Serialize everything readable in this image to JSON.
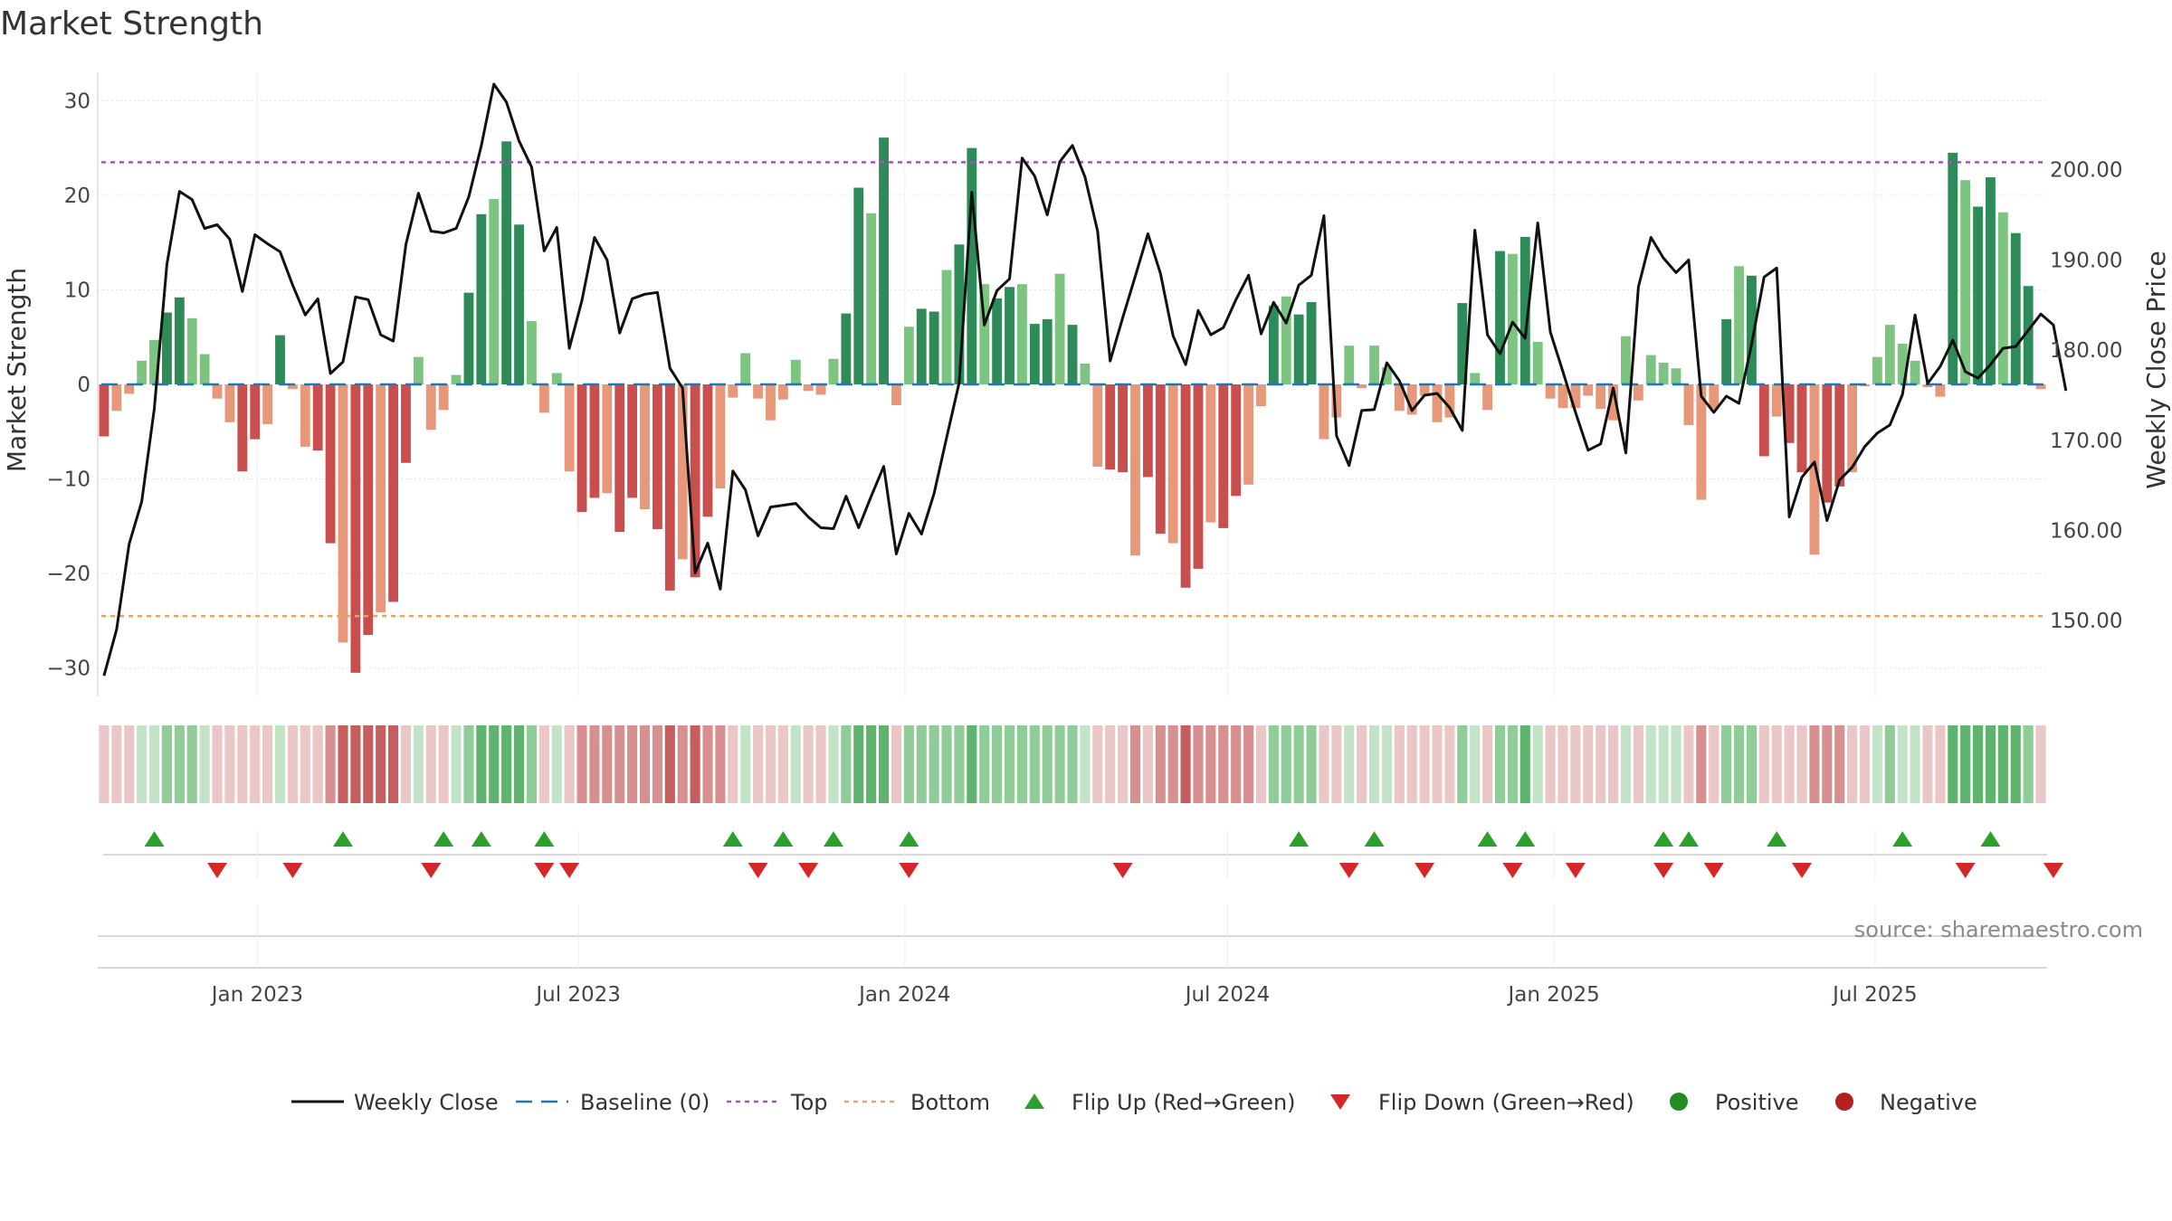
{
  "page": {
    "title": "Market Strength",
    "source": "source: sharemaestro.com"
  },
  "chart_data": {
    "type": "bar",
    "title": "Market Strength",
    "ylabel_left": "Market Strength",
    "ylabel_right": "Weekly Close Price",
    "ylim_left": [
      -33,
      33
    ],
    "ylim_right": [
      141.6,
      210.8
    ],
    "yticks_left": [
      "30",
      "20",
      "10",
      "0",
      "−10",
      "−20",
      "−30"
    ],
    "yticks_left_values": [
      30,
      20,
      10,
      0,
      -10,
      -20,
      -30
    ],
    "yticks_right": [
      "200.00",
      "190.00",
      "180.00",
      "170.00",
      "160.00",
      "150.00"
    ],
    "yticks_right_values": [
      200,
      190,
      180,
      170,
      160,
      150
    ],
    "x_start": "2022-10-03",
    "x_end": "2025-10-06",
    "xticks": [
      "Jan 2023",
      "Jul 2023",
      "Jan 2024",
      "Jul 2024",
      "Jan 2025",
      "Jul 2025"
    ],
    "xticks_dates": [
      "2023-01-01",
      "2023-07-01",
      "2024-01-01",
      "2024-07-01",
      "2025-01-01",
      "2025-07-01"
    ],
    "top_line": 23.5,
    "bottom_line": -24.5,
    "baseline": 0,
    "colors": {
      "green_dark": "#2e8b57",
      "green_light": "#7cc47f",
      "red_dark": "#c94f4f",
      "red_light": "#e8987a",
      "price_line": "#111111",
      "top_line": "#9b59b6",
      "bottom_line": "#f0a060",
      "baseline": "#1f77b4",
      "flip_up": "#2ca02c",
      "flip_down": "#d62728",
      "positive": "#228b22",
      "negative": "#b22222"
    },
    "strength": [
      -5.5,
      -2.8,
      -1,
      2.5,
      4.7,
      7.6,
      9.2,
      7,
      3.2,
      -1.5,
      -4,
      -9.2,
      -5.8,
      -4.2,
      5.2,
      -0.5,
      -6.6,
      -7,
      -16.8,
      -27.3,
      -30.5,
      -26.5,
      -24.1,
      -23,
      -8.3,
      2.9,
      -4.8,
      -2.7,
      1,
      9.7,
      18,
      19.6,
      25.7,
      16.9,
      6.7,
      -3,
      1.2,
      -9.2,
      -13.5,
      -12,
      -11.5,
      -15.6,
      -12,
      -13.2,
      -15.3,
      -21.8,
      -18.5,
      -20.4,
      -14,
      -11,
      -1.4,
      3.3,
      -1.5,
      -3.8,
      -1.6,
      2.6,
      -0.7,
      -1.1,
      2.7,
      7.5,
      20.8,
      18.1,
      26.1,
      -2.2,
      6.1,
      8,
      7.7,
      12.1,
      14.8,
      25,
      10.6,
      9.1,
      10.3,
      10.6,
      6.4,
      6.9,
      11.7,
      6.3,
      2.2,
      -8.7,
      -9,
      -9.3,
      -18.1,
      -9.8,
      -15.8,
      -16.8,
      -21.5,
      -19.5,
      -14.6,
      -15.2,
      -11.8,
      -10.6,
      -2.3,
      8.3,
      9.3,
      7.4,
      8.7,
      -5.8,
      -3.5,
      4.1,
      -0.4,
      4.1,
      1.8,
      -2.8,
      -3.2,
      -1.2,
      -4,
      -3.5,
      8.6,
      1.2,
      -2.7,
      14.1,
      13.8,
      15.6,
      4.5,
      -1.5,
      -2.5,
      -2.5,
      -1.2,
      -2.6,
      -3.8,
      5.1,
      -1.7,
      3.1,
      2.3,
      1.7,
      -4.3,
      -12.2,
      -2.6,
      6.9,
      12.5,
      11.5,
      -7.6,
      -3.4,
      -6.2,
      -9.3,
      -18,
      -12.5,
      -10.8,
      -9.3,
      -0.2,
      2.9,
      6.3,
      4.3,
      2.5,
      -0.3,
      -1.3,
      24.5,
      21.6,
      18.8,
      21.9,
      18.2,
      16,
      10.4,
      -0.5
    ],
    "price": [
      143.9,
      149,
      158.5,
      163.2,
      173.5,
      189.5,
      197.6,
      196.7,
      193.5,
      193.9,
      192.3,
      186.5,
      192.8,
      191.8,
      190.9,
      187.2,
      183.9,
      185.7,
      177.4,
      178.7,
      185.9,
      185.6,
      181.7,
      181,
      191.7,
      197.4,
      193.2,
      193,
      193.5,
      197,
      202.7,
      209.5,
      207.5,
      203.2,
      200.3,
      191,
      193.6,
      180.2,
      185.5,
      192.5,
      190,
      181.9,
      185.7,
      186.2,
      186.4,
      178,
      175.8,
      155.3,
      158.6,
      153.5,
      166.6,
      164.5,
      159.4,
      162.6,
      162.8,
      163,
      161.5,
      160.3,
      160.2,
      163.8,
      160.3,
      163.8,
      167.1,
      157.4,
      161.9,
      159.6,
      164.1,
      170.3,
      176.4,
      197.5,
      182.8,
      186.6,
      187.9,
      201.3,
      199.3,
      195,
      200.9,
      202.7,
      199.2,
      193.2,
      178.8,
      183.6,
      188.2,
      192.9,
      188.5,
      181.6,
      178.4,
      184.4,
      181.7,
      182.5,
      185.6,
      188.3,
      181.8,
      185.3,
      183,
      187.2,
      188.3,
      194.9,
      170.5,
      167.2,
      173.3,
      173.4,
      178.6,
      176.6,
      173.3,
      175,
      175.2,
      173.6,
      171.1,
      193.3,
      181.7,
      179.6,
      183.1,
      181.3,
      194.1,
      182,
      177.6,
      173.1,
      168.9,
      169.6,
      175.8,
      168.6,
      187,
      192.5,
      190.2,
      188.6,
      190,
      174.9,
      173.1,
      174.9,
      174.1,
      180.6,
      188.1,
      189.1,
      161.5,
      165.9,
      167.6,
      161.1,
      165.6,
      167,
      169.3,
      170.8,
      171.7,
      175.1,
      183.9,
      176.3,
      178.2,
      181.1,
      177.6,
      176.9,
      178.4,
      180.2,
      180.4,
      182.2,
      184,
      182.8,
      175.5
    ],
    "flip_up_weeks": [
      4,
      19,
      27,
      30,
      35,
      50,
      54,
      58,
      64,
      95,
      101,
      110,
      113,
      124,
      126,
      133,
      143,
      150
    ],
    "flip_down_weeks": [
      9,
      15,
      26,
      35,
      37,
      52,
      56,
      64,
      81,
      99,
      105,
      112,
      117,
      124,
      128,
      135,
      148,
      155
    ],
    "legend": [
      "Weekly Close",
      "Baseline (0)",
      "Top",
      "Bottom",
      "Flip Up (Red→Green)",
      "Flip Down (Green→Red)",
      "Positive",
      "Negative"
    ]
  }
}
